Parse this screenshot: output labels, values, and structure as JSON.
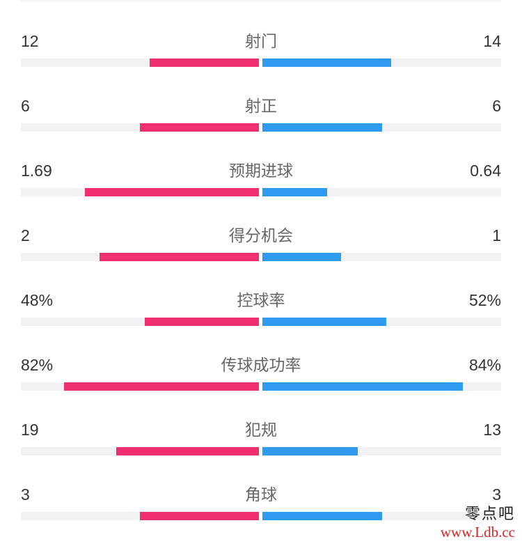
{
  "colors": {
    "home_bar": "#ef2f6f",
    "away_bar": "#2f9bf0"
  },
  "stats": [
    {
      "label": "射门",
      "left": "12",
      "right": "14",
      "left_fill": 0.46,
      "right_fill": 0.54
    },
    {
      "label": "射正",
      "left": "6",
      "right": "6",
      "left_fill": 0.5,
      "right_fill": 0.5
    },
    {
      "label": "预期进球",
      "left": "1.69",
      "right": "0.64",
      "left_fill": 0.73,
      "right_fill": 0.27
    },
    {
      "label": "得分机会",
      "left": "2",
      "right": "1",
      "left_fill": 0.67,
      "right_fill": 0.33
    },
    {
      "label": "控球率",
      "left": "48%",
      "right": "52%",
      "left_fill": 0.48,
      "right_fill": 0.52
    },
    {
      "label": "传球成功率",
      "left": "82%",
      "right": "84%",
      "left_fill": 0.82,
      "right_fill": 0.84
    },
    {
      "label": "犯规",
      "left": "19",
      "right": "13",
      "left_fill": 0.6,
      "right_fill": 0.4
    },
    {
      "label": "角球",
      "left": "3",
      "right": "3",
      "left_fill": 0.5,
      "right_fill": 0.5
    }
  ],
  "watermark": {
    "text": "零点吧",
    "url": "www.Ldb.cc"
  }
}
